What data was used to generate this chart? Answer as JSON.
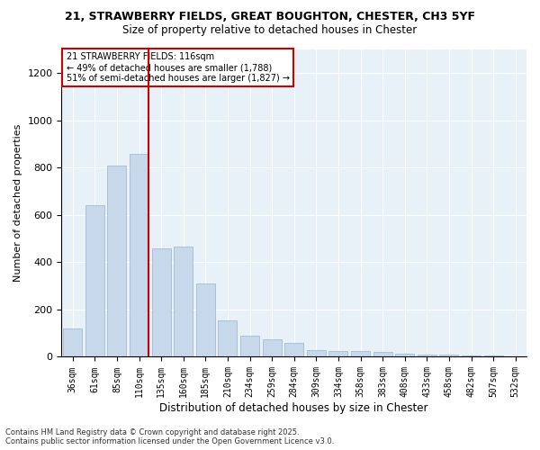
{
  "title1": "21, STRAWBERRY FIELDS, GREAT BOUGHTON, CHESTER, CH3 5YF",
  "title2": "Size of property relative to detached houses in Chester",
  "xlabel": "Distribution of detached houses by size in Chester",
  "ylabel": "Number of detached properties",
  "bar_color": "#c8d8eb",
  "bar_edge_color": "#9ab5cc",
  "background_color": "#e8f0f8",
  "vline_x": 3,
  "vline_color": "#cc0000",
  "annotation_text": "21 STRAWBERRY FIELDS: 116sqm\n← 49% of detached houses are smaller (1,788)\n51% of semi-detached houses are larger (1,827) →",
  "annotation_box_color": "white",
  "annotation_box_edge": "#cc0000",
  "categories": [
    "36sqm",
    "61sqm",
    "85sqm",
    "110sqm",
    "135sqm",
    "160sqm",
    "185sqm",
    "210sqm",
    "234sqm",
    "259sqm",
    "284sqm",
    "309sqm",
    "334sqm",
    "358sqm",
    "383sqm",
    "408sqm",
    "433sqm",
    "458sqm",
    "482sqm",
    "507sqm",
    "532sqm"
  ],
  "bar_heights": [
    120,
    640,
    810,
    860,
    460,
    465,
    310,
    155,
    90,
    75,
    60,
    30,
    25,
    25,
    20,
    15,
    10,
    8,
    5,
    5,
    3
  ],
  "ylim": [
    0,
    1300
  ],
  "yticks": [
    0,
    200,
    400,
    600,
    800,
    1000,
    1200
  ],
  "footnote": "Contains HM Land Registry data © Crown copyright and database right 2025.\nContains public sector information licensed under the Open Government Licence v3.0."
}
